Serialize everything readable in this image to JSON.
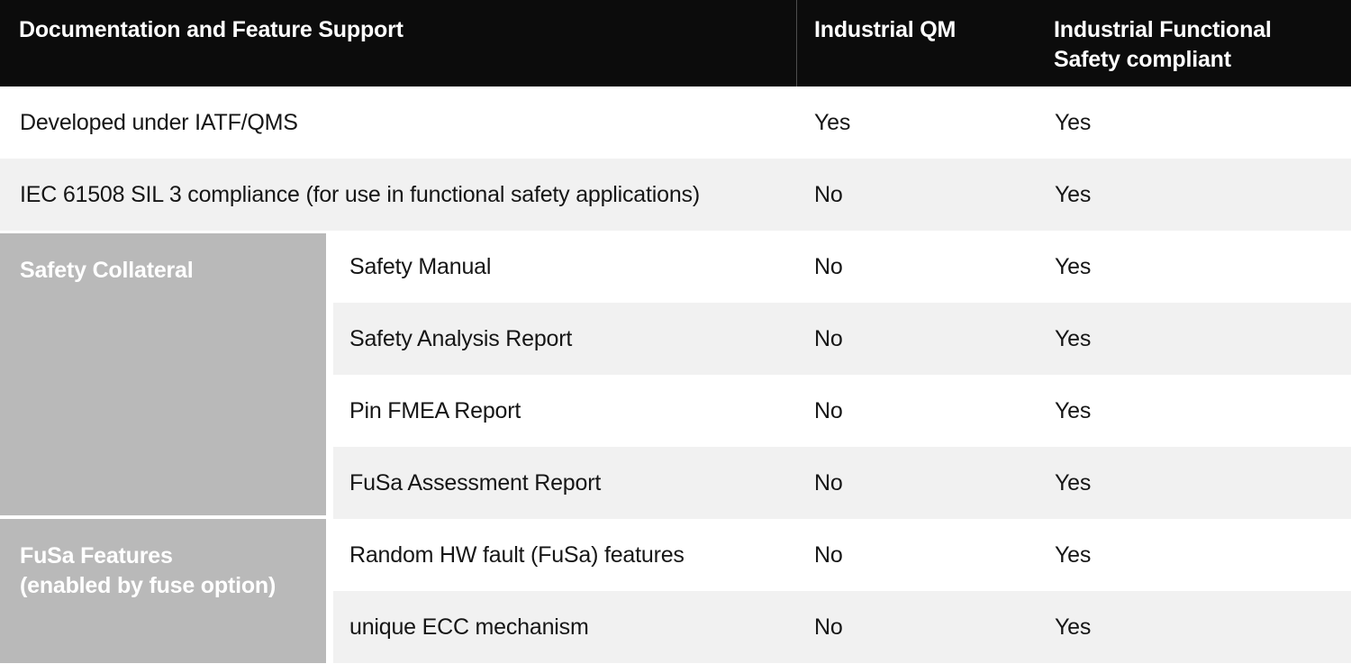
{
  "colors": {
    "header-bg": "#0c0c0c",
    "header-text": "#ffffff",
    "header-divider": "#4d4d4d",
    "row-alt-bg": "#f1f1f1",
    "row-bg": "#ffffff",
    "group-bg": "#b9b9b9",
    "group-text": "#ffffff",
    "body-text": "#161616"
  },
  "header": {
    "feature_col": "Documentation and Feature Support",
    "qm_col": "Industrial QM",
    "fusa_col": "Industrial Functional\nSafety compliant"
  },
  "rows": [
    {
      "feature": "Developed under IATF/QMS",
      "qm": "Yes",
      "fusa": "Yes"
    },
    {
      "feature": "IEC 61508 SIL 3 compliance (for use in functional safety applications)",
      "qm": "No",
      "fusa": "Yes"
    }
  ],
  "groups": [
    {
      "label": "Safety Collateral",
      "rows": [
        {
          "feature": "Safety Manual",
          "qm": "No",
          "fusa": "Yes"
        },
        {
          "feature": "Safety Analysis Report",
          "qm": "No",
          "fusa": "Yes"
        },
        {
          "feature": "Pin FMEA Report",
          "qm": "No",
          "fusa": "Yes"
        },
        {
          "feature": "FuSa Assessment Report",
          "qm": "No",
          "fusa": "Yes"
        }
      ]
    },
    {
      "label": "FuSa Features\n(enabled by fuse option)",
      "rows": [
        {
          "feature": "Random HW fault (FuSa) features",
          "qm": "No",
          "fusa": "Yes"
        },
        {
          "feature": "unique ECC mechanism",
          "qm": "No",
          "fusa": "Yes"
        }
      ]
    }
  ]
}
